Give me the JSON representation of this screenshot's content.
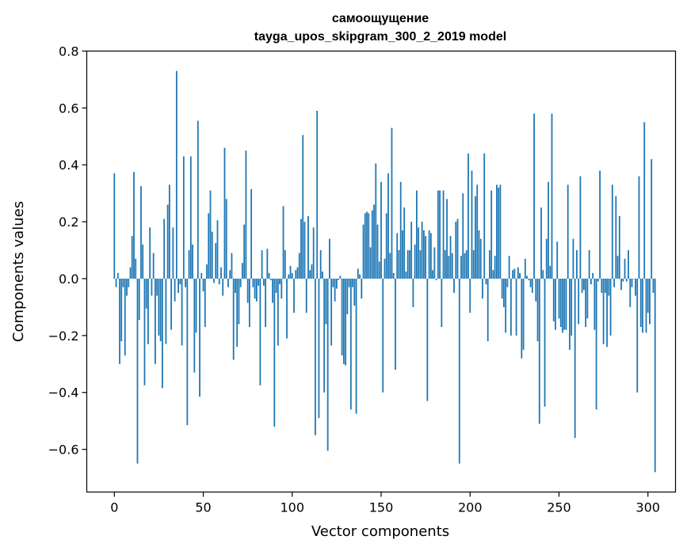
{
  "chart_data": {
    "type": "bar",
    "title": "самоощущение",
    "subtitle": "tayga_upos_skipgram_300_2_2019 model",
    "xlabel": "Vector components",
    "ylabel": "Components values",
    "xlim": [
      -15.5,
      315.5
    ],
    "ylim": [
      -0.75,
      0.8
    ],
    "xticks": [
      0,
      50,
      100,
      150,
      200,
      250,
      300
    ],
    "yticks": [
      -0.6,
      -0.4,
      -0.2,
      0.0,
      0.2,
      0.4,
      0.6,
      0.8
    ],
    "grid": false,
    "bar_color": "#1f77b4",
    "values": [
      0.37,
      -0.03,
      0.02,
      -0.3,
      -0.22,
      -0.03,
      -0.27,
      -0.06,
      -0.03,
      0.04,
      0.15,
      0.375,
      0.07,
      -0.65,
      -0.145,
      0.325,
      0.12,
      -0.375,
      -0.105,
      -0.23,
      0.18,
      -0.06,
      0.09,
      -0.3,
      -0.06,
      -0.2,
      -0.22,
      -0.385,
      0.21,
      -0.23,
      0.26,
      0.33,
      -0.18,
      0.18,
      -0.08,
      0.73,
      -0.05,
      -0.02,
      -0.235,
      0.43,
      -0.03,
      -0.515,
      0.1,
      0.43,
      0.12,
      -0.33,
      -0.19,
      0.555,
      -0.415,
      0.02,
      -0.045,
      -0.17,
      0.05,
      0.23,
      0.31,
      0.165,
      -0.015,
      0.125,
      0.205,
      -0.02,
      0.04,
      -0.06,
      0.46,
      0.28,
      -0.03,
      0.03,
      0.09,
      -0.285,
      -0.05,
      -0.24,
      -0.16,
      -0.03,
      0.055,
      0.19,
      0.45,
      -0.085,
      -0.17,
      0.315,
      -0.03,
      -0.07,
      -0.08,
      -0.025,
      -0.375,
      0.1,
      -0.025,
      -0.17,
      0.105,
      0.02,
      -0.005,
      -0.085,
      -0.52,
      -0.05,
      -0.235,
      -0.02,
      -0.07,
      0.255,
      0.1,
      -0.21,
      0.015,
      0.045,
      0.02,
      -0.12,
      0.03,
      0.04,
      0.09,
      0.21,
      0.505,
      0.2,
      -0.12,
      0.22,
      0.03,
      0.05,
      0.18,
      -0.55,
      0.59,
      -0.49,
      0.1,
      0.025,
      -0.4,
      -0.16,
      -0.605,
      0.14,
      -0.235,
      -0.03,
      -0.08,
      -0.035,
      -0.005,
      0.01,
      -0.27,
      -0.3,
      -0.305,
      -0.125,
      -0.03,
      -0.46,
      -0.03,
      -0.095,
      -0.475,
      0.035,
      0.015,
      -0.07,
      0.19,
      0.23,
      0.235,
      0.23,
      0.11,
      0.24,
      0.26,
      0.405,
      0.19,
      0.06,
      0.34,
      -0.4,
      0.07,
      0.23,
      0.37,
      0.09,
      0.53,
      0.02,
      -0.32,
      0.16,
      0.1,
      0.34,
      0.17,
      0.25,
      0.025,
      0.1,
      0.1,
      0.2,
      -0.1,
      0.12,
      0.31,
      0.18,
      0.1,
      0.2,
      0.17,
      0.15,
      -0.43,
      0.17,
      0.16,
      0.03,
      0.11,
      -0.005,
      0.31,
      0.31,
      -0.17,
      0.31,
      0.1,
      0.28,
      0.08,
      0.15,
      0.09,
      -0.05,
      0.2,
      0.21,
      -0.65,
      0.08,
      0.3,
      0.09,
      0.1,
      0.44,
      -0.12,
      0.38,
      0.1,
      0.29,
      0.33,
      0.17,
      0.14,
      -0.07,
      0.44,
      -0.02,
      -0.22,
      0.1,
      0.31,
      0.03,
      0.08,
      0.33,
      0.32,
      0.33,
      -0.07,
      -0.1,
      -0.19,
      -0.03,
      0.08,
      -0.2,
      0.03,
      0.035,
      -0.2,
      0.04,
      0.02,
      -0.28,
      -0.25,
      0.07,
      0.01,
      -0.005,
      -0.03,
      -0.05,
      0.58,
      -0.08,
      -0.22,
      -0.51,
      0.25,
      0.03,
      -0.45,
      0.14,
      0.34,
      0.045,
      0.58,
      -0.15,
      -0.18,
      0.13,
      -0.14,
      -0.17,
      -0.19,
      -0.18,
      -0.18,
      0.33,
      -0.25,
      -0.2,
      0.14,
      -0.56,
      0.1,
      -0.16,
      0.36,
      -0.05,
      -0.04,
      -0.17,
      -0.14,
      0.1,
      -0.02,
      0.02,
      -0.18,
      -0.46,
      -0.01,
      0.38,
      -0.05,
      -0.23,
      -0.05,
      -0.24,
      -0.06,
      -0.2,
      0.33,
      -0.03,
      0.29,
      0.08,
      0.22,
      -0.04,
      -0.01,
      0.07,
      -0.01,
      0.1,
      -0.1,
      -0.03,
      0.0,
      -0.06,
      -0.4,
      0.36,
      -0.17,
      -0.19,
      0.55,
      -0.19,
      -0.12,
      -0.16,
      0.42,
      -0.05,
      -0.68
    ]
  }
}
